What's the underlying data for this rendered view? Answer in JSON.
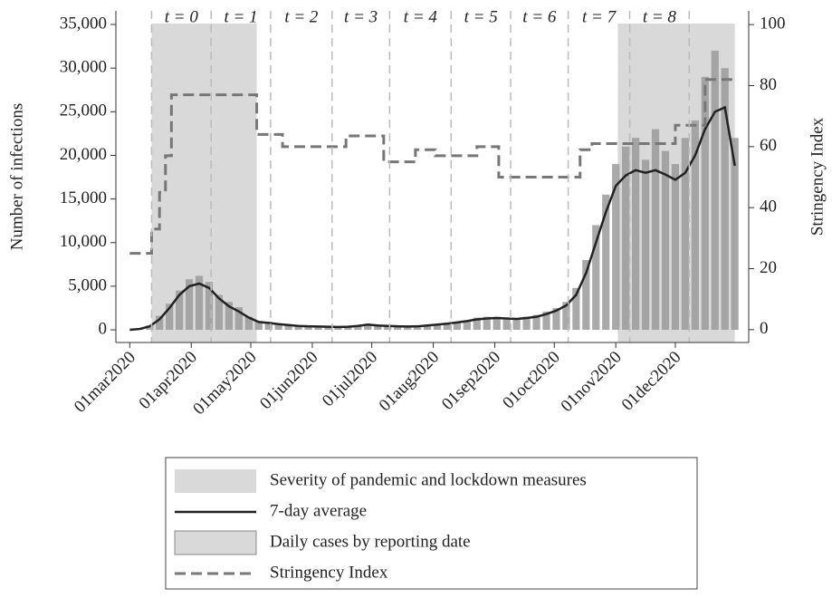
{
  "chart_data": {
    "type": "bar",
    "y_label": "Number of infections",
    "y2_label": "Stringency Index",
    "xlim": [
      "2020-02-23",
      "2021-01-07"
    ],
    "ylim": [
      -1450,
      36560
    ],
    "y2lim": [
      -4.2,
      104.5
    ],
    "xticks": [
      {
        "value": "2020-03-01",
        "label": "01mar2020"
      },
      {
        "value": "2020-04-01",
        "label": "01apr2020"
      },
      {
        "value": "2020-05-01",
        "label": "01may2020"
      },
      {
        "value": "2020-06-01",
        "label": "01jun2020"
      },
      {
        "value": "2020-07-01",
        "label": "01jul2020"
      },
      {
        "value": "2020-08-01",
        "label": "01aug2020"
      },
      {
        "value": "2020-09-01",
        "label": "01sep2020"
      },
      {
        "value": "2020-10-01",
        "label": "01oct2020"
      },
      {
        "value": "2020-11-01",
        "label": "01nov2020"
      },
      {
        "value": "2020-12-01",
        "label": "01dec2020"
      }
    ],
    "yticks": [
      0,
      {
        "value": 5000,
        "label": "5,000"
      },
      {
        "value": 10000,
        "label": "10,000"
      },
      {
        "value": 15000,
        "label": "15,000"
      },
      {
        "value": 20000,
        "label": "20,000"
      },
      {
        "value": 25000,
        "label": "25,000"
      },
      {
        "value": 30000,
        "label": "30,000"
      },
      {
        "value": 35000,
        "label": "35,000"
      }
    ],
    "y2ticks": [
      0,
      20,
      40,
      60,
      80,
      100
    ],
    "shaded": {
      "name": "Severity of pandemic and lockdown measures",
      "color": "#d9d9d9",
      "regions": [
        [
          "2020-03-12",
          "2020-05-04"
        ],
        [
          "2020-11-02",
          "2020-12-31"
        ]
      ]
    },
    "period_boundaries": [
      "2020-03-12",
      "2020-04-11",
      "2020-05-11",
      "2020-06-11",
      "2020-07-10",
      "2020-08-10",
      "2020-09-09",
      "2020-10-08",
      "2020-11-08",
      "2020-12-08"
    ],
    "period_labels": [
      "t = 0",
      "t = 1",
      "t = 2",
      "t = 3",
      "t = 4",
      "t = 5",
      "t = 6",
      "t = 7",
      "t = 8"
    ],
    "x": [
      "2020-03-01",
      "2020-03-06",
      "2020-03-11",
      "2020-03-16",
      "2020-03-21",
      "2020-03-26",
      "2020-03-31",
      "2020-04-05",
      "2020-04-10",
      "2020-04-15",
      "2020-04-20",
      "2020-04-25",
      "2020-04-30",
      "2020-05-05",
      "2020-05-10",
      "2020-05-15",
      "2020-05-20",
      "2020-05-25",
      "2020-05-30",
      "2020-06-04",
      "2020-06-09",
      "2020-06-14",
      "2020-06-19",
      "2020-06-24",
      "2020-06-29",
      "2020-07-04",
      "2020-07-09",
      "2020-07-14",
      "2020-07-19",
      "2020-07-24",
      "2020-07-29",
      "2020-08-03",
      "2020-08-08",
      "2020-08-13",
      "2020-08-18",
      "2020-08-23",
      "2020-08-28",
      "2020-09-02",
      "2020-09-07",
      "2020-09-12",
      "2020-09-17",
      "2020-09-22",
      "2020-09-27",
      "2020-10-02",
      "2020-10-07",
      "2020-10-12",
      "2020-10-17",
      "2020-10-22",
      "2020-10-27",
      "2020-11-01",
      "2020-11-06",
      "2020-11-11",
      "2020-11-16",
      "2020-11-21",
      "2020-11-26",
      "2020-12-01",
      "2020-12-06",
      "2020-12-11",
      "2020-12-16",
      "2020-12-21",
      "2020-12-26",
      "2020-12-31"
    ],
    "series": [
      {
        "name": "7-day average",
        "type": "line",
        "color": "#222222",
        "values": [
          0,
          100,
          400,
          1200,
          2500,
          4000,
          5000,
          5300,
          4800,
          3600,
          2700,
          2100,
          1400,
          900,
          800,
          650,
          550,
          450,
          400,
          380,
          350,
          330,
          350,
          450,
          600,
          500,
          450,
          400,
          380,
          400,
          500,
          600,
          700,
          850,
          1000,
          1200,
          1300,
          1350,
          1300,
          1250,
          1350,
          1500,
          1800,
          2200,
          2800,
          4000,
          6500,
          10000,
          13500,
          16500,
          17700,
          18300,
          18000,
          18300,
          17800,
          17200,
          18000,
          20000,
          23000,
          25000,
          25500,
          18800
        ]
      },
      {
        "name": "Daily cases by reporting date",
        "type": "bar",
        "color": "#9a9a9a",
        "values": [
          0,
          150,
          500,
          1600,
          3000,
          4500,
          5800,
          6200,
          5500,
          4000,
          3200,
          2600,
          1500,
          1000,
          900,
          700,
          600,
          500,
          450,
          400,
          380,
          350,
          400,
          500,
          700,
          550,
          480,
          420,
          400,
          450,
          550,
          650,
          800,
          950,
          1100,
          1400,
          1500,
          1500,
          1400,
          1300,
          1500,
          1700,
          2100,
          2500,
          3200,
          4800,
          8000,
          12000,
          15500,
          19000,
          21000,
          22000,
          19500,
          23000,
          20500,
          19000,
          22000,
          24000,
          29000,
          32000,
          30000,
          22000
        ]
      },
      {
        "name": "Stringency Index",
        "type": "step",
        "axis": "y2",
        "color": "#777777",
        "x": [
          "2020-03-01",
          "2020-03-12",
          "2020-03-16",
          "2020-03-19",
          "2020-03-22",
          "2020-05-04",
          "2020-05-17",
          "2020-06-18",
          "2020-07-07",
          "2020-07-23",
          "2020-08-02",
          "2020-08-23",
          "2020-09-03",
          "2020-10-14",
          "2020-10-20",
          "2020-12-01",
          "2020-12-16",
          "2020-12-31"
        ],
        "values": [
          25,
          33,
          45,
          57,
          77,
          64,
          60,
          63.5,
          55,
          59,
          57,
          60,
          50,
          59,
          61,
          67,
          82,
          82
        ]
      }
    ]
  }
}
